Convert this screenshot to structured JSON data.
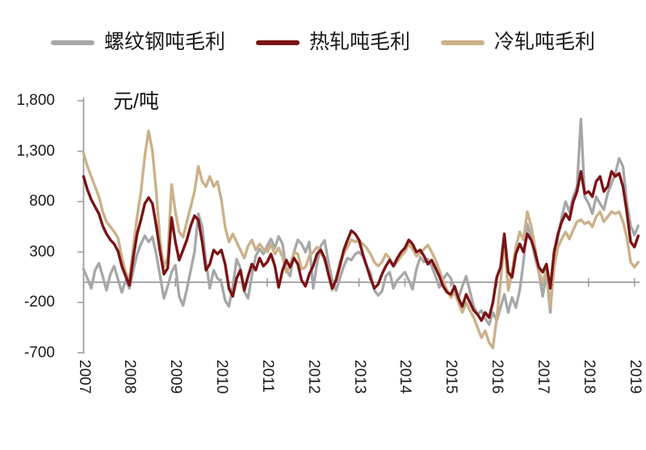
{
  "unit_label": "元/吨",
  "colors": {
    "rebar": "#a7a7a7",
    "hot_rolled": "#7a1316",
    "cold_rolled": "#cbb189",
    "axis": "#9d9d9d",
    "text": "#1a1a1a"
  },
  "legend": [
    {
      "label": "螺纹钢吨毛利",
      "color": "#a7a7a7"
    },
    {
      "label": "热轧吨毛利",
      "color": "#7a1316"
    },
    {
      "label": "冷轧吨毛利",
      "color": "#cbb189"
    }
  ],
  "chart_data": {
    "type": "line",
    "title": "",
    "xlabel": "",
    "ylabel": "元/吨",
    "ylim": [
      -700,
      1800
    ],
    "grid": false,
    "legend_position": "top",
    "x_unit": "month",
    "x_start": "2007-01",
    "x_end": "2019-02",
    "x_tick_labels": [
      "2007",
      "2008",
      "2009",
      "2010",
      "2011",
      "2012",
      "2013",
      "2014",
      "2015",
      "2016",
      "2017",
      "2018",
      "2019"
    ],
    "y_tick_labels": [
      "1,800",
      "1,300",
      "800",
      "300",
      "-200",
      "-700"
    ],
    "series": [
      {
        "name": "螺纹钢吨毛利",
        "color": "#a7a7a7",
        "values": [
          130,
          40,
          -60,
          120,
          190,
          60,
          -80,
          80,
          160,
          30,
          -100,
          20,
          -60,
          120,
          280,
          380,
          460,
          400,
          450,
          280,
          60,
          -160,
          -40,
          100,
          170,
          -140,
          -230,
          -70,
          120,
          300,
          680,
          550,
          200,
          -60,
          120,
          40,
          0,
          -180,
          -240,
          -40,
          230,
          140,
          -90,
          -160,
          70,
          260,
          330,
          280,
          360,
          430,
          340,
          455,
          380,
          120,
          60,
          300,
          420,
          380,
          300,
          400,
          -60,
          180,
          360,
          415,
          200,
          20,
          -80,
          40,
          160,
          240,
          220,
          280,
          300,
          260,
          160,
          90,
          -80,
          -130,
          -90,
          60,
          100,
          -60,
          20,
          60,
          100,
          20,
          -70,
          130,
          250,
          200,
          230,
          160,
          60,
          -50,
          30,
          90,
          40,
          -60,
          -160,
          -40,
          60,
          -90,
          -240,
          -320,
          -280,
          -360,
          -420,
          -300,
          -380,
          -250,
          -120,
          -300,
          -150,
          -250,
          -80,
          200,
          580,
          450,
          250,
          100,
          -140,
          80,
          -300,
          200,
          450,
          650,
          800,
          700,
          850,
          950,
          1620,
          850,
          780,
          680,
          850,
          780,
          720,
          880,
          980,
          1080,
          1230,
          1150,
          800,
          560,
          470,
          560
        ]
      },
      {
        "name": "热轧吨毛利",
        "color": "#7a1316",
        "values": [
          1050,
          920,
          820,
          750,
          680,
          560,
          480,
          420,
          380,
          310,
          160,
          60,
          -30,
          250,
          480,
          620,
          780,
          840,
          780,
          560,
          300,
          80,
          140,
          640,
          400,
          220,
          320,
          420,
          560,
          660,
          620,
          400,
          120,
          180,
          320,
          280,
          320,
          180,
          -60,
          -140,
          40,
          120,
          -80,
          60,
          180,
          120,
          240,
          160,
          200,
          280,
          160,
          -50,
          120,
          220,
          150,
          240,
          180,
          20,
          -40,
          80,
          160,
          280,
          320,
          240,
          80,
          -60,
          20,
          160,
          320,
          420,
          512,
          480,
          420,
          280,
          160,
          40,
          -60,
          -20,
          80,
          160,
          220,
          160,
          240,
          300,
          340,
          420,
          380,
          300,
          320,
          260,
          180,
          220,
          140,
          60,
          -40,
          -100,
          -120,
          -40,
          -160,
          -240,
          -120,
          -200,
          -280,
          -320,
          -380,
          -300,
          -350,
          -200,
          50,
          150,
          480,
          100,
          50,
          280,
          380,
          300,
          480,
          420,
          300,
          150,
          100,
          180,
          -60,
          300,
          480,
          600,
          680,
          620,
          800,
          900,
          1100,
          880,
          900,
          850,
          1000,
          1050,
          900,
          950,
          1100,
          1050,
          1080,
          950,
          700,
          400,
          350,
          460
        ]
      },
      {
        "name": "冷轧吨毛利",
        "color": "#cbb189",
        "values": [
          1280,
          1150,
          1050,
          950,
          850,
          700,
          600,
          550,
          500,
          440,
          250,
          100,
          20,
          350,
          650,
          900,
          1250,
          1500,
          1300,
          900,
          400,
          150,
          250,
          970,
          700,
          500,
          450,
          600,
          750,
          900,
          1150,
          1000,
          950,
          1050,
          950,
          1000,
          820,
          550,
          400,
          480,
          400,
          320,
          240,
          360,
          420,
          320,
          380,
          330,
          300,
          375,
          280,
          340,
          250,
          100,
          160,
          300,
          280,
          130,
          150,
          260,
          300,
          350,
          300,
          220,
          100,
          -80,
          40,
          200,
          280,
          350,
          424,
          400,
          420,
          380,
          340,
          280,
          200,
          160,
          200,
          280,
          240,
          160,
          200,
          260,
          300,
          380,
          330,
          260,
          290,
          330,
          370,
          300,
          220,
          120,
          10,
          -80,
          -150,
          -100,
          -200,
          -300,
          -200,
          -280,
          -350,
          -450,
          -550,
          -480,
          -600,
          -650,
          -350,
          0,
          420,
          -80,
          100,
          350,
          500,
          420,
          700,
          560,
          350,
          100,
          0,
          120,
          -250,
          150,
          350,
          430,
          500,
          430,
          520,
          600,
          620,
          580,
          600,
          550,
          650,
          700,
          600,
          650,
          700,
          680,
          700,
          600,
          450,
          200,
          150,
          200
        ]
      }
    ]
  }
}
